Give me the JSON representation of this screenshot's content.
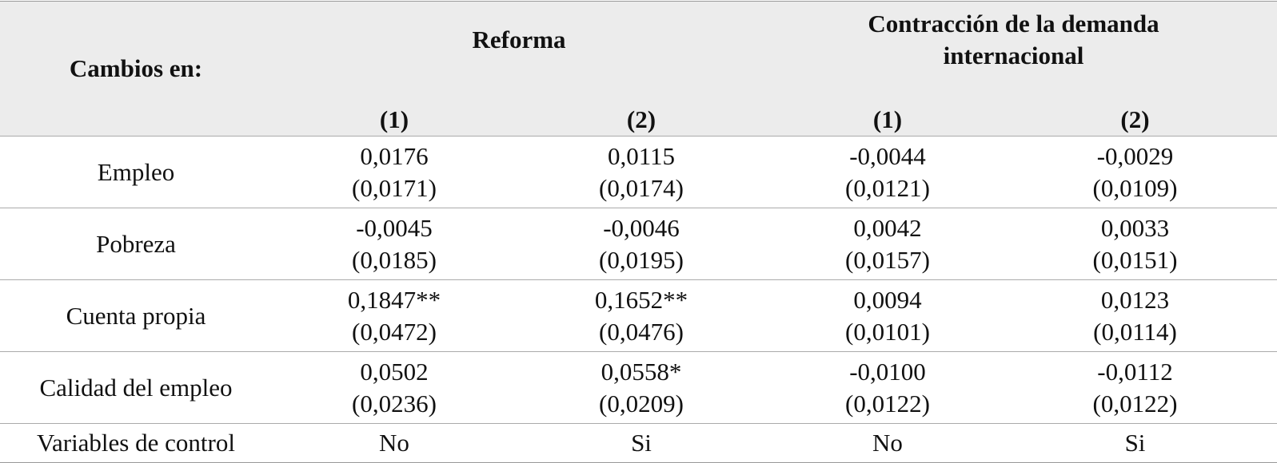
{
  "header": {
    "row_label": "Cambios en:",
    "groups": [
      "Reforma",
      "Contracción de la demanda internacional"
    ],
    "columns": [
      "(1)",
      "(2)",
      "(1)",
      "(2)"
    ]
  },
  "rows": [
    {
      "label": "Empleo",
      "cells": [
        [
          "0,0176",
          "(0,0171)"
        ],
        [
          "0,0115",
          "(0,0174)"
        ],
        [
          "-0,0044",
          "(0,0121)"
        ],
        [
          "-0,0029",
          "(0,0109)"
        ]
      ]
    },
    {
      "label": "Pobreza",
      "cells": [
        [
          "-0,0045",
          "(0,0185)"
        ],
        [
          "-0,0046",
          "(0,0195)"
        ],
        [
          "0,0042",
          "(0,0157)"
        ],
        [
          "0,0033",
          "(0,0151)"
        ]
      ]
    },
    {
      "label": "Cuenta propia",
      "cells": [
        [
          "0,1847**",
          "(0,0472)"
        ],
        [
          "0,1652**",
          "(0,0476)"
        ],
        [
          "0,0094",
          "(0,0101)"
        ],
        [
          "0,0123",
          "(0,0114)"
        ]
      ]
    },
    {
      "label": "Calidad del empleo",
      "cells": [
        [
          "0,0502",
          "(0,0236)"
        ],
        [
          "0,0558*",
          "(0,0209)"
        ],
        [
          "-0,0100",
          "(0,0122)"
        ],
        [
          "-0,0112",
          "(0,0122)"
        ]
      ]
    }
  ],
  "controls": {
    "label": "Variables de control",
    "values": [
      "No",
      "Si",
      "No",
      "Si"
    ]
  }
}
